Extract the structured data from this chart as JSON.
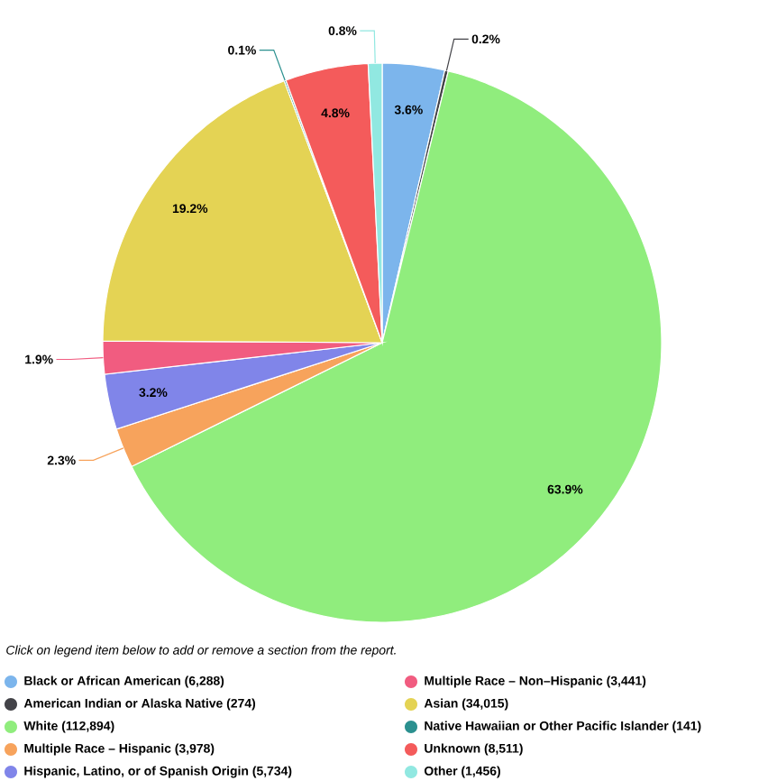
{
  "chart_data": {
    "type": "pie",
    "categories": [
      "Black or African American (6,288)",
      "American Indian or Alaska Native (274)",
      "White (112,894)",
      "Multiple Race – Hispanic (3,978)",
      "Hispanic, Latino, or of Spanish Origin (5,734)",
      "Multiple Race – Non–Hispanic (3,441)",
      "Asian (34,015)",
      "Native Hawaiian or Other Pacific Islander (141)",
      "Unknown (8,511)",
      "Other (1,456)"
    ],
    "values": [
      3.6,
      0.2,
      63.9,
      2.3,
      3.2,
      1.9,
      19.2,
      0.1,
      4.8,
      0.8
    ],
    "colors": [
      "#7cb5ec",
      "#434348",
      "#90ed7d",
      "#f7a35c",
      "#8085e9",
      "#f15c80",
      "#e4d354",
      "#2b908f",
      "#f45b5b",
      "#91e8e1"
    ],
    "value_labels": [
      "3.6%",
      "0.2%",
      "63.9%",
      "2.3%",
      "3.2%",
      "1.9%",
      "19.2%",
      "0.1%",
      "4.8%",
      "0.8%"
    ],
    "legend": "bottom",
    "annotations": [
      "Click on legend item below to add or remove a section from the report."
    ]
  }
}
